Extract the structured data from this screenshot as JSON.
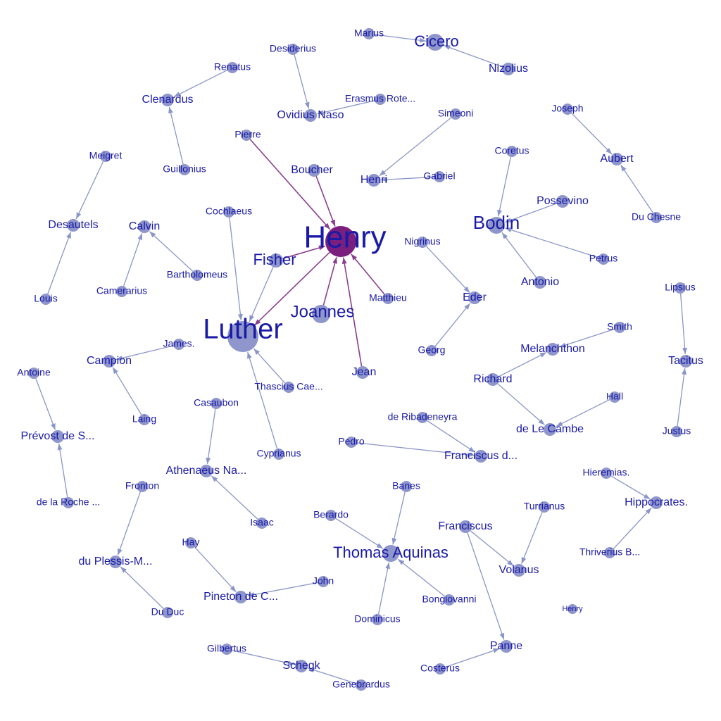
{
  "colors": {
    "node": "#8e96cc",
    "node_highlight": "#7a1f7e",
    "edge": "#8a95c8",
    "edge_highlight": "#8a3f8f",
    "label": "#1a1aa6"
  },
  "nodes": [
    {
      "id": "henry_main",
      "label": "Henry",
      "highlight": true
    },
    {
      "id": "luther",
      "label": "Luther"
    },
    {
      "id": "fisher",
      "label": "Fisher"
    },
    {
      "id": "joannes",
      "label": "Joannes"
    },
    {
      "id": "boucher",
      "label": "Boucher"
    },
    {
      "id": "pierre",
      "label": "Pierre"
    },
    {
      "id": "matthieu",
      "label": "Matthieu"
    },
    {
      "id": "jean",
      "label": "Jean"
    },
    {
      "id": "cochlaeus",
      "label": "Cochlaeus"
    },
    {
      "id": "james",
      "label": "James."
    },
    {
      "id": "thascius",
      "label": "Thascius Cae..."
    },
    {
      "id": "cyprianus",
      "label": "Cyprianus"
    },
    {
      "id": "marius",
      "label": "Marius"
    },
    {
      "id": "cicero",
      "label": "Cicero"
    },
    {
      "id": "nizolius",
      "label": "Nizolius"
    },
    {
      "id": "desiderius",
      "label": "Desiderius"
    },
    {
      "id": "ovidius",
      "label": "Ovidius Naso"
    },
    {
      "id": "erasmus",
      "label": "Erasmus Rote..."
    },
    {
      "id": "renatus",
      "label": "Renatus"
    },
    {
      "id": "clenardus",
      "label": "Clenardus"
    },
    {
      "id": "guillonius",
      "label": "Guillonius"
    },
    {
      "id": "simeoni",
      "label": "Simeoni"
    },
    {
      "id": "henri",
      "label": "Henri"
    },
    {
      "id": "gabriel",
      "label": "Gabriel"
    },
    {
      "id": "joseph",
      "label": "Joseph"
    },
    {
      "id": "aubert",
      "label": "Aubert"
    },
    {
      "id": "duchesne",
      "label": "Du Chesne"
    },
    {
      "id": "coretus",
      "label": "Coretus"
    },
    {
      "id": "bodin",
      "label": "Bodin"
    },
    {
      "id": "possevino",
      "label": "Possevino"
    },
    {
      "id": "petrus",
      "label": "Petrus"
    },
    {
      "id": "antonio",
      "label": "Antonio"
    },
    {
      "id": "meigret",
      "label": "Meigret"
    },
    {
      "id": "desautels",
      "label": "Desautels"
    },
    {
      "id": "louis",
      "label": "Louis"
    },
    {
      "id": "calvin",
      "label": "Calvin"
    },
    {
      "id": "camerarius",
      "label": "Camerarius"
    },
    {
      "id": "bartholomeus",
      "label": "Bartholomeus"
    },
    {
      "id": "nigrinus",
      "label": "Nigrinus"
    },
    {
      "id": "eder",
      "label": "Eder"
    },
    {
      "id": "georg",
      "label": "Georg"
    },
    {
      "id": "lipsius",
      "label": "Lipsius"
    },
    {
      "id": "tacitus",
      "label": "Tacitus"
    },
    {
      "id": "justus",
      "label": "Justus"
    },
    {
      "id": "smith",
      "label": "Smith"
    },
    {
      "id": "melanchthon",
      "label": "Melanchthon"
    },
    {
      "id": "richard",
      "label": "Richard"
    },
    {
      "id": "hall",
      "label": "Hall"
    },
    {
      "id": "delecambe",
      "label": "de Le Cambe"
    },
    {
      "id": "antoine",
      "label": "Antoine"
    },
    {
      "id": "prevost",
      "label": "Prévost de S..."
    },
    {
      "id": "delaroche",
      "label": "de la Roche ..."
    },
    {
      "id": "campion",
      "label": "Campion"
    },
    {
      "id": "laing",
      "label": "Laing"
    },
    {
      "id": "casaubon",
      "label": "Casaubon"
    },
    {
      "id": "athenaeus",
      "label": "Athenaeus Na..."
    },
    {
      "id": "isaac",
      "label": "Isaac"
    },
    {
      "id": "ribadeneyra",
      "label": "de Ribadeneyra"
    },
    {
      "id": "pedro",
      "label": "Pedro"
    },
    {
      "id": "franciscusd",
      "label": "Franciscus d..."
    },
    {
      "id": "fronton",
      "label": "Fronton"
    },
    {
      "id": "duplessis",
      "label": "du Plessis-M..."
    },
    {
      "id": "duduc",
      "label": "Du Duc"
    },
    {
      "id": "hay",
      "label": "Hay"
    },
    {
      "id": "pineton",
      "label": "Pineton de C..."
    },
    {
      "id": "john",
      "label": "John"
    },
    {
      "id": "banes",
      "label": "Banes"
    },
    {
      "id": "berardo",
      "label": "Berardo"
    },
    {
      "id": "thomas",
      "label": "Thomas Aquinas"
    },
    {
      "id": "bongiovanni",
      "label": "Bongiovanni"
    },
    {
      "id": "dominicus",
      "label": "Dominicus"
    },
    {
      "id": "franciscus",
      "label": "Franciscus"
    },
    {
      "id": "turrianus",
      "label": "Turrianus"
    },
    {
      "id": "volanus",
      "label": "Volanus"
    },
    {
      "id": "hieremias",
      "label": "Hieremias."
    },
    {
      "id": "hippocrates",
      "label": "Hippocrates."
    },
    {
      "id": "thriverius",
      "label": "Thriverius B..."
    },
    {
      "id": "henry_small",
      "label": "Henry"
    },
    {
      "id": "panne",
      "label": "Panne"
    },
    {
      "id": "costerus",
      "label": "Costerus"
    },
    {
      "id": "gilbertus",
      "label": "Gilbertus"
    },
    {
      "id": "schegk",
      "label": "Schegk"
    },
    {
      "id": "genebrardus",
      "label": "Genebrardus"
    }
  ],
  "edges": [
    {
      "source": "pierre",
      "target": "henry_main",
      "highlight": true
    },
    {
      "source": "boucher",
      "target": "henry_main",
      "highlight": true
    },
    {
      "source": "fisher",
      "target": "henry_main",
      "highlight": true
    },
    {
      "source": "joannes",
      "target": "henry_main",
      "highlight": true
    },
    {
      "source": "matthieu",
      "target": "henry_main",
      "highlight": true
    },
    {
      "source": "jean",
      "target": "henry_main",
      "highlight": true
    },
    {
      "source": "henry_main",
      "target": "luther",
      "highlight": true
    },
    {
      "source": "cochlaeus",
      "target": "luther"
    },
    {
      "source": "fisher",
      "target": "luther"
    },
    {
      "source": "thascius",
      "target": "luther"
    },
    {
      "source": "cyprianus",
      "target": "luther"
    },
    {
      "source": "marius",
      "target": "cicero"
    },
    {
      "source": "nizolius",
      "target": "cicero"
    },
    {
      "source": "desiderius",
      "target": "ovidius"
    },
    {
      "source": "erasmus",
      "target": "ovidius"
    },
    {
      "source": "renatus",
      "target": "clenardus"
    },
    {
      "source": "guillonius",
      "target": "clenardus"
    },
    {
      "source": "simeoni",
      "target": "henri"
    },
    {
      "source": "gabriel",
      "target": "henri"
    },
    {
      "source": "joseph",
      "target": "aubert"
    },
    {
      "source": "duchesne",
      "target": "aubert"
    },
    {
      "source": "coretus",
      "target": "bodin"
    },
    {
      "source": "possevino",
      "target": "bodin"
    },
    {
      "source": "petrus",
      "target": "bodin"
    },
    {
      "source": "antonio",
      "target": "bodin"
    },
    {
      "source": "meigret",
      "target": "desautels"
    },
    {
      "source": "louis",
      "target": "desautels"
    },
    {
      "source": "camerarius",
      "target": "calvin"
    },
    {
      "source": "bartholomeus",
      "target": "calvin"
    },
    {
      "source": "nigrinus",
      "target": "eder"
    },
    {
      "source": "georg",
      "target": "eder"
    },
    {
      "source": "lipsius",
      "target": "tacitus"
    },
    {
      "source": "justus",
      "target": "tacitus"
    },
    {
      "source": "richard",
      "target": "melanchthon"
    },
    {
      "source": "smith",
      "target": "melanchthon"
    },
    {
      "source": "richard",
      "target": "delecambe"
    },
    {
      "source": "hall",
      "target": "delecambe"
    },
    {
      "source": "antoine",
      "target": "prevost"
    },
    {
      "source": "delaroche",
      "target": "prevost"
    },
    {
      "source": "james",
      "target": "campion"
    },
    {
      "source": "laing",
      "target": "campion"
    },
    {
      "source": "casaubon",
      "target": "athenaeus"
    },
    {
      "source": "isaac",
      "target": "athenaeus"
    },
    {
      "source": "ribadeneyra",
      "target": "franciscusd"
    },
    {
      "source": "pedro",
      "target": "franciscusd"
    },
    {
      "source": "fronton",
      "target": "duplessis"
    },
    {
      "source": "duduc",
      "target": "duplessis"
    },
    {
      "source": "hay",
      "target": "pineton"
    },
    {
      "source": "john",
      "target": "pineton"
    },
    {
      "source": "banes",
      "target": "thomas"
    },
    {
      "source": "berardo",
      "target": "thomas"
    },
    {
      "source": "bongiovanni",
      "target": "thomas"
    },
    {
      "source": "dominicus",
      "target": "thomas"
    },
    {
      "source": "franciscus",
      "target": "volanus"
    },
    {
      "source": "turrianus",
      "target": "volanus"
    },
    {
      "source": "franciscus",
      "target": "panne"
    },
    {
      "source": "costerus",
      "target": "panne"
    },
    {
      "source": "hieremias",
      "target": "hippocrates"
    },
    {
      "source": "thriverius",
      "target": "hippocrates"
    },
    {
      "source": "gilbertus",
      "target": "schegk"
    },
    {
      "source": "genebrardus",
      "target": "schegk"
    }
  ]
}
